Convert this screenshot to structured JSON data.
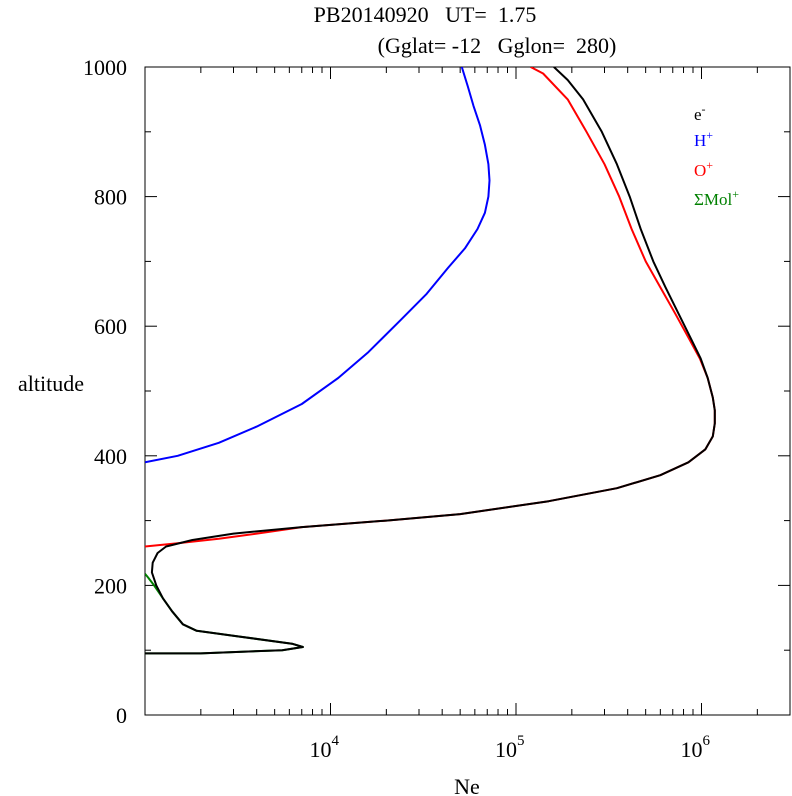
{
  "chart_data": {
    "type": "line",
    "title_line1": "PB20140920   UT=  1.75",
    "title_line2": "(Gglat= -12   Gglon=  280)",
    "xlabel": "Ne",
    "ylabel": "altitude",
    "x_scale": "log",
    "xlim": [
      1000,
      3000000
    ],
    "ylim": [
      0,
      1000
    ],
    "x_ticks": [
      {
        "value": 10000,
        "base": "10",
        "exp": "4"
      },
      {
        "value": 100000,
        "base": "10",
        "exp": "5"
      },
      {
        "value": 1000000,
        "base": "10",
        "exp": "6"
      }
    ],
    "y_ticks": [
      {
        "value": 0,
        "label": "0"
      },
      {
        "value": 200,
        "label": "200"
      },
      {
        "value": 400,
        "label": "400"
      },
      {
        "value": 600,
        "label": "600"
      },
      {
        "value": 800,
        "label": "800"
      },
      {
        "value": 1000,
        "label": "1000"
      }
    ],
    "grid": false,
    "legend_position": "top-right",
    "series": [
      {
        "name": "e",
        "sup": "-",
        "color": "#000000",
        "points": [
          [
            1000,
            95
          ],
          [
            2000,
            95
          ],
          [
            5500,
            100
          ],
          [
            7100,
            105
          ],
          [
            6200,
            110
          ],
          [
            1900,
            130
          ],
          [
            1600,
            140
          ],
          [
            1400,
            160
          ],
          [
            1250,
            180
          ],
          [
            1150,
            200
          ],
          [
            1090,
            220
          ],
          [
            1100,
            235
          ],
          [
            1170,
            250
          ],
          [
            1300,
            260
          ],
          [
            1800,
            270
          ],
          [
            3000,
            280
          ],
          [
            7000,
            290
          ],
          [
            20000,
            300
          ],
          [
            50000,
            310
          ],
          [
            150000,
            330
          ],
          [
            350000,
            350
          ],
          [
            600000,
            370
          ],
          [
            850000,
            390
          ],
          [
            1050000,
            410
          ],
          [
            1150000,
            430
          ],
          [
            1180000,
            450
          ],
          [
            1180000,
            470
          ],
          [
            1150000,
            490
          ],
          [
            1080000,
            520
          ],
          [
            990000,
            550
          ],
          [
            880000,
            580
          ],
          [
            750000,
            620
          ],
          [
            640000,
            660
          ],
          [
            550000,
            700
          ],
          [
            470000,
            750
          ],
          [
            410000,
            800
          ],
          [
            350000,
            850
          ],
          [
            290000,
            900
          ],
          [
            230000,
            950
          ],
          [
            190000,
            980
          ],
          [
            160000,
            1000
          ]
        ]
      },
      {
        "name": "H",
        "sup": "+",
        "color": "#0000ff",
        "points": [
          [
            1000,
            390
          ],
          [
            1500,
            400
          ],
          [
            2500,
            420
          ],
          [
            4000,
            445
          ],
          [
            7000,
            480
          ],
          [
            11000,
            520
          ],
          [
            16000,
            560
          ],
          [
            24000,
            610
          ],
          [
            33000,
            650
          ],
          [
            43000,
            690
          ],
          [
            53000,
            720
          ],
          [
            62000,
            750
          ],
          [
            68000,
            775
          ],
          [
            71000,
            800
          ],
          [
            72000,
            825
          ],
          [
            71000,
            850
          ],
          [
            68000,
            880
          ],
          [
            64000,
            910
          ],
          [
            59000,
            940
          ],
          [
            55000,
            970
          ],
          [
            51000,
            1000
          ]
        ]
      },
      {
        "name": "O",
        "sup": "+",
        "color": "#ff0000",
        "points": [
          [
            1000,
            260
          ],
          [
            1500,
            265
          ],
          [
            2500,
            272
          ],
          [
            4000,
            280
          ],
          [
            7000,
            290
          ],
          [
            20000,
            300
          ],
          [
            50000,
            310
          ],
          [
            150000,
            330
          ],
          [
            350000,
            350
          ],
          [
            600000,
            370
          ],
          [
            850000,
            390
          ],
          [
            1050000,
            410
          ],
          [
            1150000,
            430
          ],
          [
            1180000,
            450
          ],
          [
            1180000,
            470
          ],
          [
            1150000,
            490
          ],
          [
            1080000,
            520
          ],
          [
            980000,
            550
          ],
          [
            860000,
            580
          ],
          [
            720000,
            620
          ],
          [
            600000,
            660
          ],
          [
            500000,
            700
          ],
          [
            420000,
            750
          ],
          [
            360000,
            800
          ],
          [
            300000,
            850
          ],
          [
            240000,
            900
          ],
          [
            190000,
            950
          ],
          [
            140000,
            990
          ],
          [
            120000,
            1000
          ]
        ]
      },
      {
        "name": "ΣMol",
        "sup": "+",
        "color": "#008000",
        "points": [
          [
            1000,
            95
          ],
          [
            2000,
            95
          ],
          [
            5500,
            100
          ],
          [
            7100,
            105
          ],
          [
            6200,
            110
          ],
          [
            1900,
            130
          ],
          [
            1600,
            140
          ],
          [
            1400,
            160
          ],
          [
            1250,
            180
          ],
          [
            1120,
            200
          ],
          [
            1040,
            212
          ],
          [
            1000,
            218
          ]
        ]
      }
    ]
  }
}
